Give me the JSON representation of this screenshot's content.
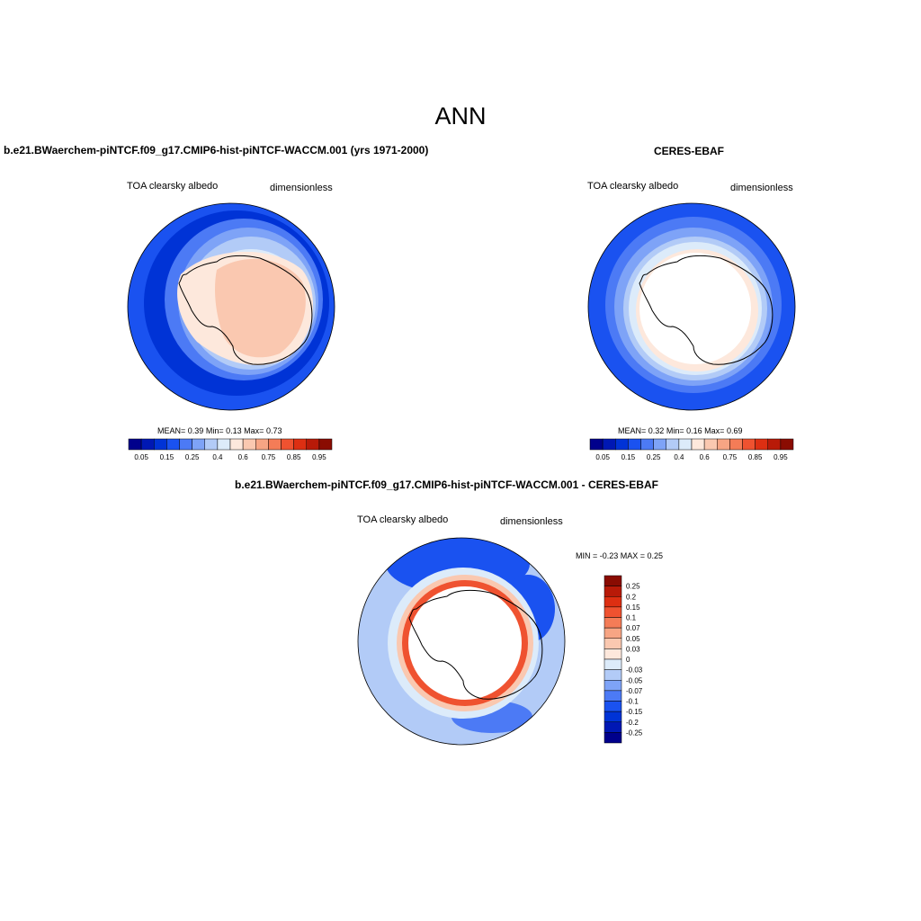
{
  "page_title": "ANN",
  "panels": [
    {
      "title": "b.e21.BWaerchem-piNTCF.f09_g17.CMIP6-hist-piNTCF-WACCM.001 (yrs 1971-2000)",
      "variable": "TOA clearsky albedo",
      "units": "dimensionless",
      "stats": {
        "mean_label": "MEAN=",
        "mean": "0.39",
        "min_label": "Min=",
        "min": "0.13",
        "max_label": "Max=",
        "max": "0.73"
      }
    },
    {
      "title": "CERES-EBAF",
      "variable": "TOA clearsky albedo",
      "units": "dimensionless",
      "stats": {
        "mean_label": "MEAN=",
        "mean": "0.32",
        "min_label": "Min=",
        "min": "0.16",
        "max_label": "Max=",
        "max": "0.69"
      }
    },
    {
      "title": "b.e21.BWaerchem-piNTCF.f09_g17.CMIP6-hist-piNTCF-WACCM.001 - CERES-EBAF",
      "variable": "TOA clearsky albedo",
      "units": "dimensionless",
      "range_text": "MIN =  -0.23 MAX =   0.25"
    }
  ],
  "colorbar_horizontal": {
    "colors": [
      "#00008c",
      "#0018b4",
      "#0033d6",
      "#1a52f0",
      "#4c7af5",
      "#7ea3f7",
      "#b2cbf7",
      "#dcebfa",
      "#fde8dc",
      "#fac8b0",
      "#f7a584",
      "#f47c57",
      "#ef5230",
      "#dd2f12",
      "#b81a08",
      "#8a0c02"
    ],
    "tick_labels": [
      "0.05",
      "0.15",
      "0.25",
      "0.4",
      "0.6",
      "0.75",
      "0.85",
      "0.95"
    ]
  },
  "colorbar_vertical": {
    "colors": [
      "#8a0c02",
      "#b81a08",
      "#dd2f12",
      "#ef5230",
      "#f47c57",
      "#f7a584",
      "#fac8b0",
      "#fde8dc",
      "#dcebfa",
      "#b2cbf7",
      "#7ea3f7",
      "#4c7af5",
      "#1a52f0",
      "#0033d6",
      "#0018b4",
      "#00008c"
    ],
    "tick_labels": [
      "0.25",
      "0.2",
      "0.15",
      "0.1",
      "0.07",
      "0.05",
      "0.03",
      "0",
      "-0.03",
      "-0.05",
      "-0.07",
      "-0.1",
      "-0.15",
      "-0.2",
      "-0.25"
    ]
  }
}
